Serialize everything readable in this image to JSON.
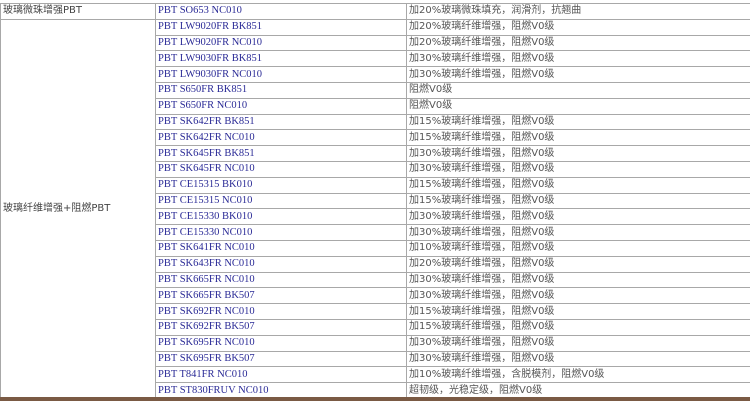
{
  "groups": [
    {
      "category": "玻璃微珠增强PBT",
      "rows": [
        {
          "grade": "PBT SO653 NC010",
          "description": "加20%玻璃微珠填充，润滑剂，抗翘曲"
        }
      ]
    },
    {
      "category": "玻璃纤维增强+阻燃PBT",
      "rows": [
        {
          "grade": "PBT LW9020FR BK851",
          "description": "加20%玻璃纤维增强，阻燃V0级"
        },
        {
          "grade": "PBT LW9020FR NC010",
          "description": "加20%玻璃纤维增强，阻燃V0级"
        },
        {
          "grade": "PBT LW9030FR BK851",
          "description": "加30%玻璃纤维增强，阻燃V0级"
        },
        {
          "grade": "PBT LW9030FR NC010",
          "description": "加30%玻璃纤维增强，阻燃V0级"
        },
        {
          "grade": "PBT S650FR BK851",
          "description": "阻燃V0级"
        },
        {
          "grade": "PBT S650FR NC010",
          "description": "阻燃V0级"
        },
        {
          "grade": "PBT SK642FR BK851",
          "description": "加15%玻璃纤维增强，阻燃V0级"
        },
        {
          "grade": "PBT SK642FR NC010",
          "description": "加15%玻璃纤维增强，阻燃V0级"
        },
        {
          "grade": "PBT SK645FR BK851",
          "description": "加30%玻璃纤维增强，阻燃V0级"
        },
        {
          "grade": "PBT SK645FR NC010",
          "description": "加30%玻璃纤维增强，阻燃V0级"
        },
        {
          "grade": "PBT CE15315 BK010",
          "description": "加15%玻璃纤维增强，阻燃V0级"
        },
        {
          "grade": "PBT CE15315 NC010",
          "description": "加15%玻璃纤维增强，阻燃V0级"
        },
        {
          "grade": "PBT CE15330 BK010",
          "description": "加30%玻璃纤维增强，阻燃V0级"
        },
        {
          "grade": "PBT CE15330 NC010",
          "description": "加30%玻璃纤维增强，阻燃V0级"
        },
        {
          "grade": "PBT SK641FR NC010",
          "description": "加10%玻璃纤维增强，阻燃V0级"
        },
        {
          "grade": "PBT SK643FR NC010",
          "description": "加20%玻璃纤维增强，阻燃V0级"
        },
        {
          "grade": "PBT SK665FR NC010",
          "description": "加30%玻璃纤维增强，阻燃V0级"
        },
        {
          "grade": "PBT SK665FR BK507",
          "description": "加30%玻璃纤维增强，阻燃V0级"
        },
        {
          "grade": "PBT SK692FR NC010",
          "description": "加15%玻璃纤维增强，阻燃V0级"
        },
        {
          "grade": "PBT SK692FR BK507",
          "description": "加15%玻璃纤维增强，阻燃V0级"
        },
        {
          "grade": "PBT SK695FR NC010",
          "description": "加30%玻璃纤维增强，阻燃V0级"
        },
        {
          "grade": "PBT SK695FR BK507",
          "description": "加30%玻璃纤维增强，阻燃V0级"
        },
        {
          "grade": "PBT T841FR NC010",
          "description": "加10%玻璃纤维增强，含脱模剂，阻燃V0级"
        },
        {
          "grade": "PBT ST830FRUV NC010",
          "description": "超韧级，光稳定级，阻燃V0级"
        }
      ]
    }
  ]
}
